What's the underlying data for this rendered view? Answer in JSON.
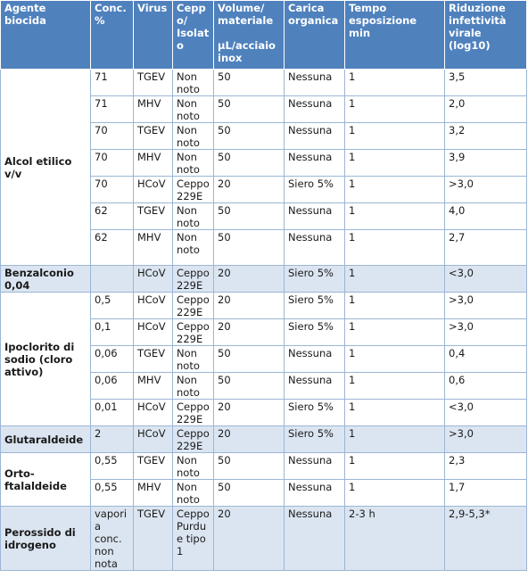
{
  "headers": {
    "agent": "Agente biocida",
    "conc": "Conc. %",
    "virus": "Virus",
    "strain": "Ceppo/ Isolato",
    "volume": "Volume/ materiale",
    "volume_unit": "µL/acciaio inox",
    "load": "Carica organica",
    "time": "Tempo esposizione min",
    "reduction": "Riduzione infettività virale (log10)"
  },
  "groups": [
    {
      "agent": "Alcol etilico v/v",
      "rows": [
        {
          "conc": "71",
          "virus": "TGEV",
          "strain": "Non noto",
          "volume": "50",
          "load": "Nessuna",
          "time": "1",
          "reduction": "3,5"
        },
        {
          "conc": "71",
          "virus": "MHV",
          "strain": "Non noto",
          "volume": "50",
          "load": "Nessuna",
          "time": "1",
          "reduction": "2,0"
        },
        {
          "conc": "70",
          "virus": "TGEV",
          "strain": "Non noto",
          "volume": "50",
          "load": "Nessuna",
          "time": "1",
          "reduction": "3,2"
        },
        {
          "conc": "70",
          "virus": "MHV",
          "strain": "Non noto",
          "volume": "50",
          "load": "Nessuna",
          "time": "1",
          "reduction": "3,9"
        },
        {
          "conc": "70",
          "virus": "HCoV",
          "strain": "Ceppo 229E",
          "volume": "20",
          "load": "Siero 5%",
          "time": "1",
          "reduction": ">3,0"
        },
        {
          "conc": "62",
          "virus": "TGEV",
          "strain": "Non noto",
          "volume": "50",
          "load": "Nessuna",
          "time": "1",
          "reduction": "4,0"
        },
        {
          "conc": "62",
          "virus": "MHV",
          "strain": "Non noto",
          "volume": "50",
          "load": "Nessuna",
          "time": "1",
          "reduction": "2,7"
        }
      ]
    },
    {
      "agent": "Benzalconio 0,04",
      "rows": [
        {
          "conc": "",
          "virus": "HCoV",
          "strain": "Ceppo 229E",
          "volume": "20",
          "load": "Siero 5%",
          "time": "1",
          "reduction": "<3,0"
        }
      ]
    },
    {
      "agent": "Ipoclorito di sodio (cloro attivo)",
      "rows": [
        {
          "conc": "0,5",
          "virus": "HCoV",
          "strain": "Ceppo 229E",
          "volume": "20",
          "load": "Siero 5%",
          "time": "1",
          "reduction": ">3,0"
        },
        {
          "conc": "0,1",
          "virus": "HCoV",
          "strain": "Ceppo 229E",
          "volume": "20",
          "load": "Siero 5%",
          "time": "1",
          "reduction": ">3,0"
        },
        {
          "conc": "0,06",
          "virus": "TGEV",
          "strain": "Non noto",
          "volume": "50",
          "load": "Nessuna",
          "time": "1",
          "reduction": "0,4"
        },
        {
          "conc": "0,06",
          "virus": "MHV",
          "strain": "Non noto",
          "volume": "50",
          "load": "Nessuna",
          "time": "1",
          "reduction": "0,6"
        },
        {
          "conc": "0,01",
          "virus": "HCoV",
          "strain": "Ceppo 229E",
          "volume": "20",
          "load": "Siero 5%",
          "time": "1",
          "reduction": "<3,0"
        }
      ]
    },
    {
      "agent": "Glutaraldeide",
      "rows": [
        {
          "conc": "2",
          "virus": "HCoV",
          "strain": "Ceppo 229E",
          "volume": "20",
          "load": "Siero 5%",
          "time": "1",
          "reduction": ">3,0"
        }
      ]
    },
    {
      "agent": "Orto-ftalaldeide",
      "rows": [
        {
          "conc": "0,55",
          "virus": "TGEV",
          "strain": "Non noto",
          "volume": "50",
          "load": "Nessuna",
          "time": "1",
          "reduction": "2,3"
        },
        {
          "conc": "0,55",
          "virus": "MHV",
          "strain": "Non noto",
          "volume": "50",
          "load": "Nessuna",
          "time": "1",
          "reduction": "1,7"
        }
      ]
    },
    {
      "agent": "Perossido di idrogeno",
      "rows": [
        {
          "conc": "vapori a conc. non nota",
          "virus": "TGEV",
          "strain": "Ceppo Purdue tipo 1",
          "volume": "20",
          "load": "Nessuna",
          "time": "2-3 h",
          "reduction": "2,9-5,3*"
        }
      ]
    }
  ]
}
